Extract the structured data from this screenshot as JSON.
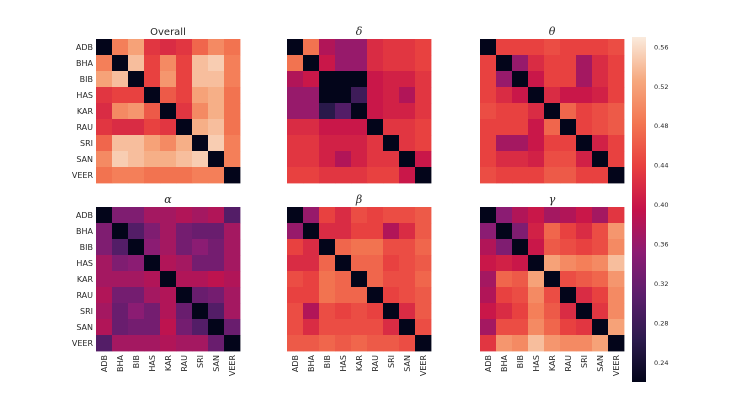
{
  "chart_data": {
    "type": "heatmap",
    "labels": [
      "ADB",
      "BHA",
      "BIB",
      "HAS",
      "KAR",
      "RAU",
      "SRI",
      "SAN",
      "VEER"
    ],
    "colormap": "rocket",
    "vmin": 0.22,
    "vmax": 0.57,
    "colorbar": {
      "ticks": [
        0.56,
        0.52,
        0.48,
        0.44,
        0.4,
        0.36,
        0.32,
        0.28,
        0.24
      ]
    },
    "panels": [
      {
        "title": "Overall",
        "greek": false,
        "values": [
          [
            0.22,
            0.49,
            0.52,
            0.43,
            0.42,
            0.43,
            0.47,
            0.5,
            0.48
          ],
          [
            0.49,
            0.22,
            0.54,
            0.44,
            0.5,
            0.44,
            0.54,
            0.55,
            0.49
          ],
          [
            0.52,
            0.54,
            0.22,
            0.44,
            0.51,
            0.44,
            0.54,
            0.54,
            0.49
          ],
          [
            0.43,
            0.44,
            0.44,
            0.22,
            0.46,
            0.44,
            0.52,
            0.53,
            0.48
          ],
          [
            0.42,
            0.5,
            0.51,
            0.46,
            0.22,
            0.43,
            0.5,
            0.53,
            0.48
          ],
          [
            0.43,
            0.42,
            0.42,
            0.44,
            0.43,
            0.22,
            0.53,
            0.54,
            0.48
          ],
          [
            0.47,
            0.54,
            0.54,
            0.52,
            0.5,
            0.53,
            0.22,
            0.55,
            0.49
          ],
          [
            0.5,
            0.55,
            0.54,
            0.53,
            0.53,
            0.54,
            0.55,
            0.22,
            0.49
          ],
          [
            0.48,
            0.49,
            0.49,
            0.48,
            0.48,
            0.48,
            0.49,
            0.49,
            0.22
          ]
        ]
      },
      {
        "title": "δ",
        "greek": true,
        "values": [
          [
            0.22,
            0.48,
            0.38,
            0.36,
            0.36,
            0.42,
            0.43,
            0.43,
            0.44
          ],
          [
            0.48,
            0.22,
            0.4,
            0.36,
            0.36,
            0.42,
            0.43,
            0.43,
            0.44
          ],
          [
            0.38,
            0.4,
            0.22,
            0.22,
            0.22,
            0.4,
            0.41,
            0.41,
            0.43
          ],
          [
            0.36,
            0.36,
            0.22,
            0.22,
            0.28,
            0.4,
            0.41,
            0.38,
            0.43
          ],
          [
            0.36,
            0.36,
            0.26,
            0.3,
            0.22,
            0.4,
            0.41,
            0.41,
            0.43
          ],
          [
            0.42,
            0.42,
            0.4,
            0.4,
            0.4,
            0.22,
            0.43,
            0.43,
            0.44
          ],
          [
            0.43,
            0.43,
            0.41,
            0.41,
            0.41,
            0.43,
            0.22,
            0.43,
            0.44
          ],
          [
            0.43,
            0.43,
            0.41,
            0.38,
            0.41,
            0.43,
            0.43,
            0.22,
            0.4
          ],
          [
            0.44,
            0.44,
            0.43,
            0.43,
            0.43,
            0.44,
            0.44,
            0.4,
            0.22
          ]
        ]
      },
      {
        "title": "θ",
        "greek": true,
        "values": [
          [
            0.22,
            0.44,
            0.44,
            0.44,
            0.45,
            0.44,
            0.44,
            0.44,
            0.45
          ],
          [
            0.44,
            0.22,
            0.36,
            0.42,
            0.44,
            0.44,
            0.37,
            0.42,
            0.44
          ],
          [
            0.44,
            0.36,
            0.22,
            0.4,
            0.44,
            0.44,
            0.37,
            0.42,
            0.44
          ],
          [
            0.44,
            0.42,
            0.4,
            0.22,
            0.42,
            0.4,
            0.4,
            0.41,
            0.44
          ],
          [
            0.45,
            0.44,
            0.44,
            0.42,
            0.22,
            0.47,
            0.44,
            0.45,
            0.46
          ],
          [
            0.44,
            0.44,
            0.44,
            0.4,
            0.47,
            0.22,
            0.44,
            0.45,
            0.46
          ],
          [
            0.44,
            0.37,
            0.37,
            0.4,
            0.44,
            0.44,
            0.22,
            0.41,
            0.44
          ],
          [
            0.44,
            0.42,
            0.42,
            0.41,
            0.45,
            0.45,
            0.41,
            0.22,
            0.44
          ],
          [
            0.45,
            0.44,
            0.44,
            0.44,
            0.46,
            0.46,
            0.44,
            0.44,
            0.22
          ]
        ]
      },
      {
        "title": "α",
        "greek": true,
        "values": [
          [
            0.22,
            0.34,
            0.34,
            0.37,
            0.37,
            0.38,
            0.37,
            0.38,
            0.3
          ],
          [
            0.34,
            0.22,
            0.3,
            0.34,
            0.37,
            0.33,
            0.32,
            0.32,
            0.37
          ],
          [
            0.34,
            0.3,
            0.22,
            0.35,
            0.37,
            0.33,
            0.35,
            0.33,
            0.37
          ],
          [
            0.37,
            0.34,
            0.35,
            0.22,
            0.38,
            0.37,
            0.33,
            0.33,
            0.37
          ],
          [
            0.37,
            0.37,
            0.37,
            0.38,
            0.22,
            0.38,
            0.38,
            0.39,
            0.38
          ],
          [
            0.38,
            0.33,
            0.33,
            0.37,
            0.38,
            0.22,
            0.32,
            0.33,
            0.37
          ],
          [
            0.37,
            0.32,
            0.35,
            0.33,
            0.38,
            0.32,
            0.22,
            0.3,
            0.37
          ],
          [
            0.38,
            0.32,
            0.33,
            0.33,
            0.39,
            0.33,
            0.3,
            0.22,
            0.32
          ],
          [
            0.3,
            0.37,
            0.37,
            0.37,
            0.38,
            0.37,
            0.37,
            0.32,
            0.22
          ]
        ]
      },
      {
        "title": "β",
        "greek": true,
        "values": [
          [
            0.22,
            0.36,
            0.44,
            0.42,
            0.45,
            0.44,
            0.45,
            0.45,
            0.46
          ],
          [
            0.36,
            0.22,
            0.42,
            0.42,
            0.44,
            0.44,
            0.38,
            0.42,
            0.46
          ],
          [
            0.44,
            0.42,
            0.22,
            0.47,
            0.48,
            0.48,
            0.45,
            0.45,
            0.47
          ],
          [
            0.42,
            0.42,
            0.47,
            0.22,
            0.47,
            0.47,
            0.44,
            0.45,
            0.46
          ],
          [
            0.45,
            0.44,
            0.48,
            0.47,
            0.22,
            0.47,
            0.45,
            0.45,
            0.47
          ],
          [
            0.44,
            0.44,
            0.48,
            0.47,
            0.47,
            0.22,
            0.44,
            0.45,
            0.46
          ],
          [
            0.45,
            0.38,
            0.45,
            0.44,
            0.45,
            0.44,
            0.22,
            0.42,
            0.46
          ],
          [
            0.45,
            0.42,
            0.45,
            0.45,
            0.45,
            0.45,
            0.42,
            0.22,
            0.45
          ],
          [
            0.46,
            0.46,
            0.47,
            0.46,
            0.47,
            0.46,
            0.46,
            0.45,
            0.22
          ]
        ]
      },
      {
        "title": "γ",
        "greek": true,
        "values": [
          [
            0.22,
            0.35,
            0.38,
            0.4,
            0.37,
            0.38,
            0.4,
            0.37,
            0.43
          ],
          [
            0.35,
            0.22,
            0.34,
            0.41,
            0.47,
            0.44,
            0.42,
            0.45,
            0.51
          ],
          [
            0.38,
            0.34,
            0.22,
            0.4,
            0.46,
            0.45,
            0.44,
            0.45,
            0.5
          ],
          [
            0.4,
            0.41,
            0.4,
            0.22,
            0.52,
            0.5,
            0.49,
            0.5,
            0.54
          ],
          [
            0.37,
            0.47,
            0.46,
            0.52,
            0.22,
            0.45,
            0.46,
            0.47,
            0.51
          ],
          [
            0.38,
            0.44,
            0.45,
            0.5,
            0.45,
            0.22,
            0.42,
            0.44,
            0.5
          ],
          [
            0.4,
            0.42,
            0.44,
            0.49,
            0.46,
            0.42,
            0.22,
            0.43,
            0.5
          ],
          [
            0.37,
            0.45,
            0.45,
            0.5,
            0.47,
            0.44,
            0.43,
            0.22,
            0.52
          ],
          [
            0.43,
            0.51,
            0.5,
            0.54,
            0.51,
            0.5,
            0.5,
            0.52,
            0.22
          ]
        ]
      }
    ]
  }
}
